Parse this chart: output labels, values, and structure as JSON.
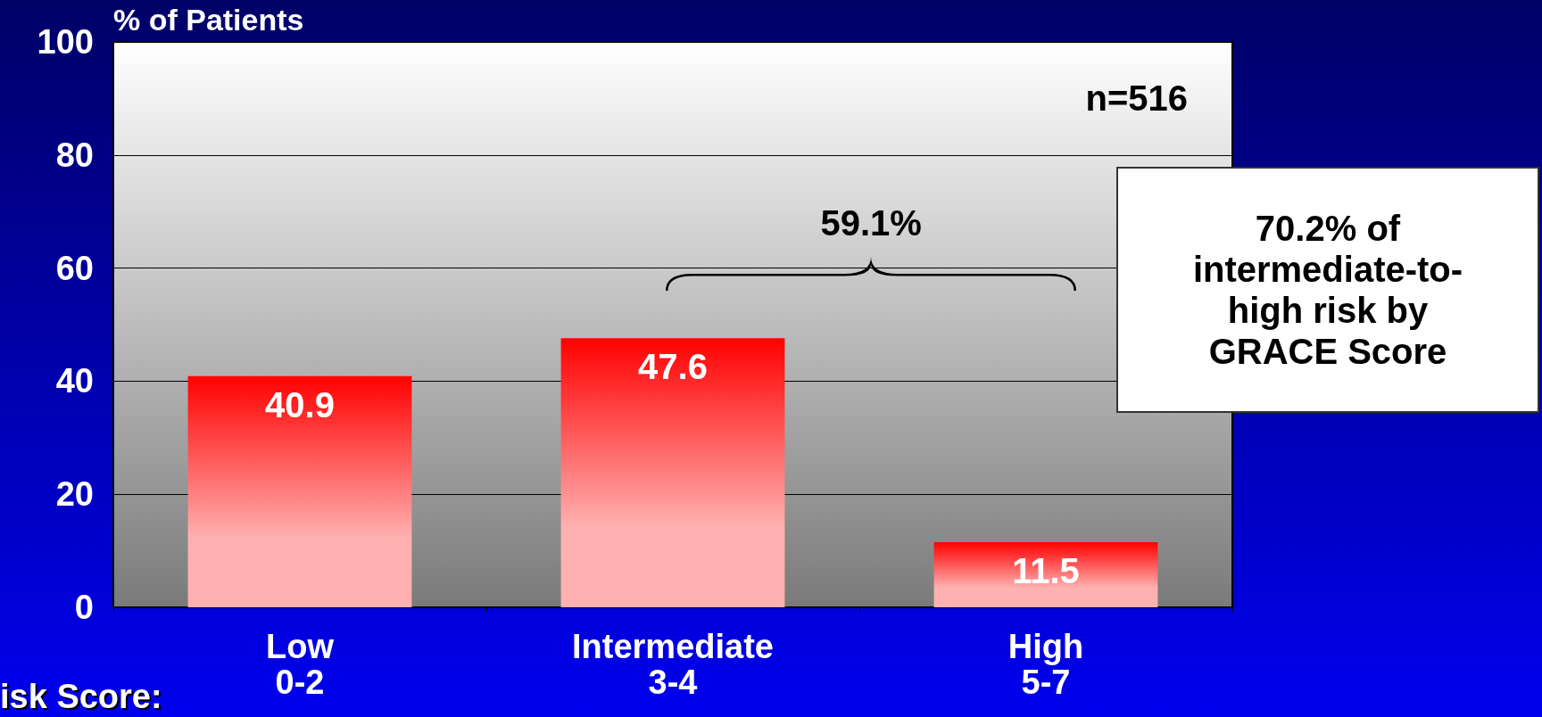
{
  "chart_data": {
    "type": "bar",
    "ylabel": "% of Patients",
    "categories": [
      "Low\n0-2",
      "Intermediate\n3-4",
      "High\n5-7"
    ],
    "values": [
      40.9,
      47.6,
      11.5
    ],
    "color": "#ff0000",
    "ylim": [
      0,
      100
    ],
    "yticks": [
      0,
      20,
      40,
      60,
      80,
      100
    ],
    "grid": "y",
    "data_labels": true,
    "annotations": [
      "n=516",
      "59.1%",
      "70.2% of\nintermediate-to-\nhigh risk by\nGRACE Score",
      "isk Score:"
    ]
  }
}
